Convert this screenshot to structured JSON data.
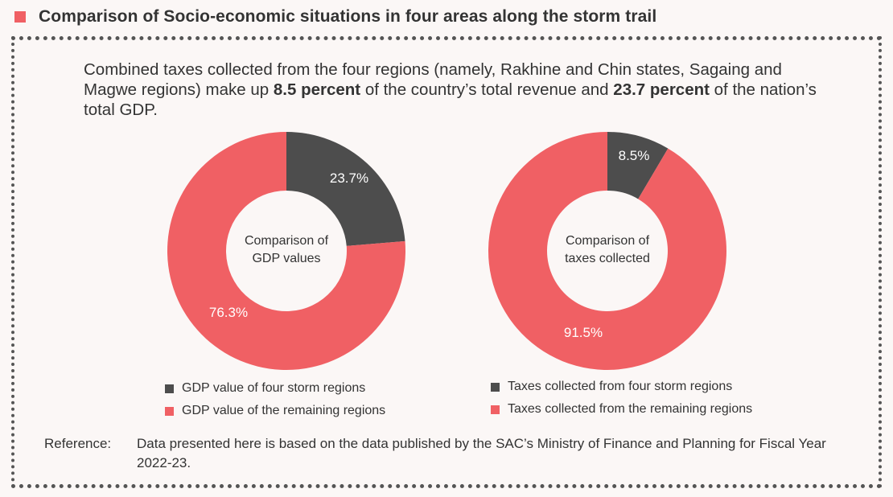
{
  "header": {
    "title": "Comparison of Socio-economic situations in four areas along the storm trail",
    "accent_color": "#f06064"
  },
  "intro": {
    "part1": "Combined taxes collected from the four regions (namely, Rakhine and Chin states, Sagaing and Magwe regions) make up ",
    "highlight1": "8.5 percent",
    "part2": " of the country’s total revenue and ",
    "highlight2": "23.7 percent",
    "part3": " of the nation’s total GDP."
  },
  "chart_data": [
    {
      "type": "pie",
      "variant": "donut",
      "center_label": [
        "Comparison of",
        "GDP values"
      ],
      "slices": [
        {
          "label": "GDP value of four storm regions",
          "value": 23.7,
          "display": "23.7%",
          "color": "#4d4d4d"
        },
        {
          "label": "GDP value of the remaining regions",
          "value": 76.3,
          "display": "76.3%",
          "color": "#f06064"
        }
      ]
    },
    {
      "type": "pie",
      "variant": "donut",
      "center_label": [
        "Comparison of",
        "taxes collected"
      ],
      "slices": [
        {
          "label": "Taxes collected from four storm regions",
          "value": 8.5,
          "display": "8.5%",
          "color": "#4d4d4d"
        },
        {
          "label": "Taxes collected from the remaining regions",
          "value": 91.5,
          "display": "91.5%",
          "color": "#f06064"
        }
      ]
    }
  ],
  "reference": {
    "label": "Reference:",
    "text": "Data presented here is based on the data published by the SAC’s Ministry of Finance and Planning for Fiscal Year 2022-23."
  }
}
